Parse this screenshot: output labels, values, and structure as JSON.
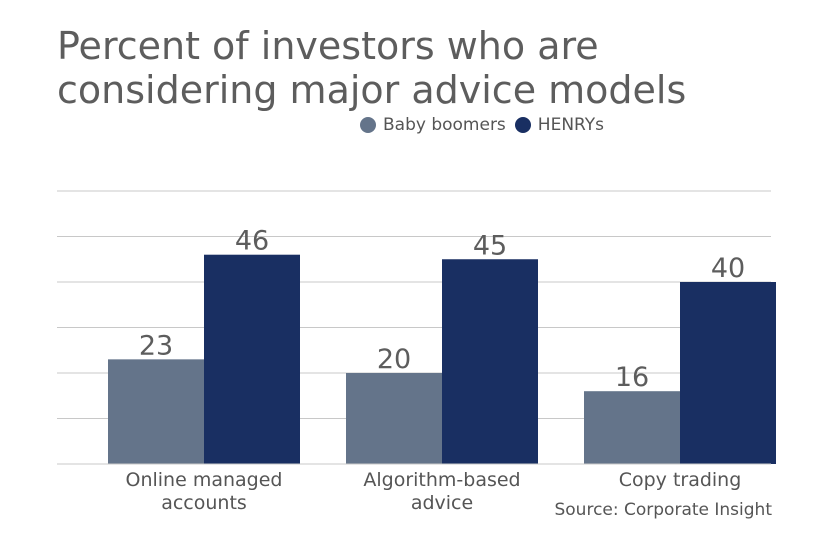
{
  "chart_data": {
    "type": "bar",
    "title": "Percent of investors who are considering major advice models",
    "categories": [
      "Online managed accounts",
      "Algorithm-based advice",
      "Copy trading"
    ],
    "category_lines": [
      [
        "Online managed",
        "accounts"
      ],
      [
        "Algorithm-based",
        "advice"
      ],
      [
        "Copy trading"
      ]
    ],
    "series": [
      {
        "name": "Baby boomers",
        "values": [
          23,
          20,
          16
        ],
        "color": "#64748a"
      },
      {
        "name": "HENRYs",
        "values": [
          46,
          45,
          40
        ],
        "color": "#192f62"
      }
    ],
    "ylim": [
      0,
      60
    ],
    "y_grid_step": 10,
    "grid": true,
    "legend_position": "top-right",
    "data_labels": true,
    "source": "Source: Corporate Insight"
  }
}
